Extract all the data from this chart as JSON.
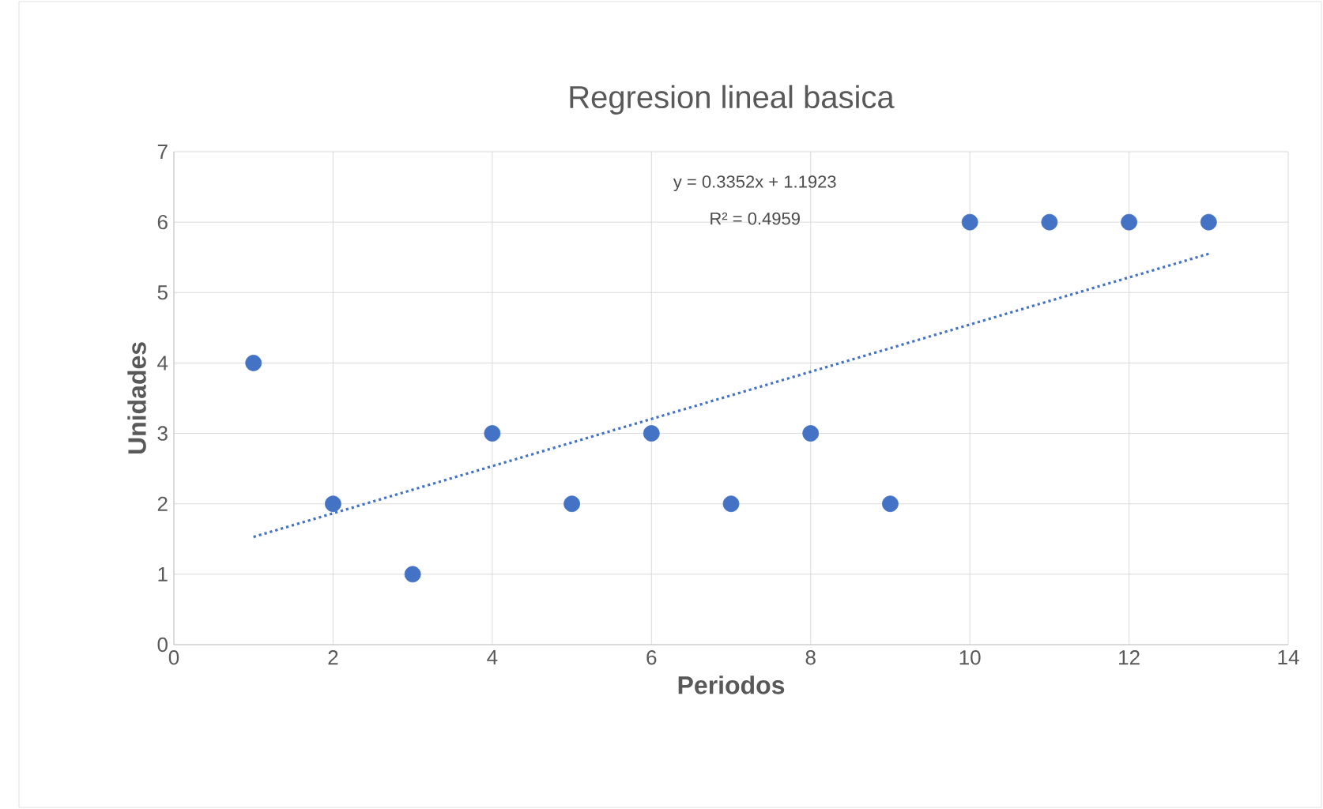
{
  "chart_data": {
    "type": "scatter",
    "title": "Regresion lineal basica",
    "xlabel": "Periodos",
    "ylabel": "Unidades",
    "annotations": [
      "y = 0.3352x + 1.1923",
      "R² = 0.4959"
    ],
    "series": [
      {
        "color": "#4472c4",
        "marker": "circle",
        "x": [
          1,
          2,
          3,
          4,
          5,
          6,
          7,
          8,
          9,
          10,
          11,
          12,
          13
        ],
        "values": [
          4,
          2,
          1,
          3,
          2,
          3,
          2,
          3,
          2,
          6,
          6,
          6,
          6
        ]
      },
      {
        "type": "line",
        "color": "#4472c4",
        "line_style": "dotted",
        "x": [
          1,
          13
        ],
        "values": [
          1.53,
          5.55
        ]
      }
    ],
    "xlim": [
      0,
      14
    ],
    "xticks": [
      0,
      2,
      4,
      6,
      8,
      10,
      12,
      14
    ],
    "ylim": [
      0,
      7
    ],
    "yticks": [
      0,
      1,
      2,
      3,
      4,
      5,
      6,
      7
    ],
    "grid": true
  }
}
